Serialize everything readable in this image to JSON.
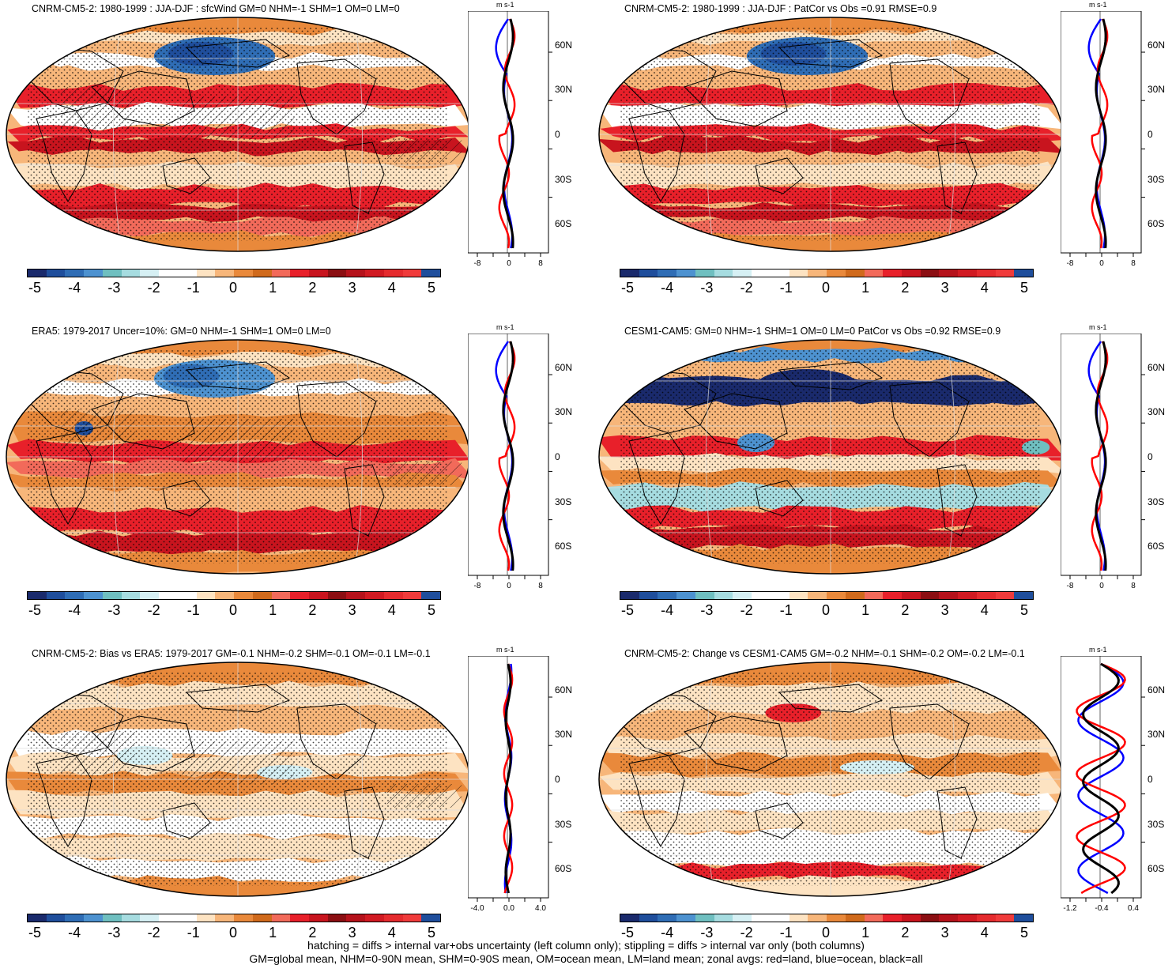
{
  "panels": [
    {
      "title": "CNRM-CM5-2: 1980-1999 : JJA-DJF : sfcWind GM=0 NHM=-1 SHM=1 OM=0 LM=0",
      "col": 0,
      "row": 0,
      "hatch": true,
      "variant": "model",
      "xticks": [
        "-8",
        "0",
        "8"
      ]
    },
    {
      "title": "CNRM-CM5-2: 1980-1999 : JJA-DJF : PatCor vs Obs =0.91 RMSE=0.9",
      "col": 1,
      "row": 0,
      "hatch": false,
      "variant": "model",
      "xticks": [
        "-8",
        "0",
        "8"
      ]
    },
    {
      "title": "ERA5: 1979-2017 Uncer=10%: GM=0 NHM=-1 SHM=1 OM=0 LM=0",
      "col": 0,
      "row": 1,
      "hatch": true,
      "variant": "obs",
      "xticks": [
        "-8",
        "0",
        "8"
      ]
    },
    {
      "title": "CESM1-CAM5: GM=0 NHM=-1 SHM=1 OM=0 LM=0 PatCor vs Obs =0.92 RMSE=0.9",
      "col": 1,
      "row": 1,
      "hatch": false,
      "variant": "cesm",
      "xticks": [
        "-8",
        "0",
        "8"
      ]
    },
    {
      "title": "CNRM-CM5-2: Bias vs ERA5: 1979-2017 GM=-0.1 NHM=-0.2 SHM=-0.1 OM=-0.1 LM=-0.1",
      "col": 0,
      "row": 2,
      "hatch": true,
      "variant": "bias",
      "xticks": [
        "-4.0",
        "0.0",
        "4.0"
      ]
    },
    {
      "title": "CNRM-CM5-2: Change vs CESM1-CAM5 GM=-0.2 NHM=-0.1 SHM=-0.2 OM=-0.2 LM=-0.1",
      "col": 1,
      "row": 2,
      "hatch": false,
      "variant": "change",
      "xticks": [
        "-1.2",
        "-0.4",
        "0.4"
      ]
    }
  ],
  "colorbar": {
    "colors": [
      "#1a2a6c",
      "#1f4e9c",
      "#2f6db5",
      "#4d92d0",
      "#6fbfc0",
      "#a6dce0",
      "#d6f0f4",
      "#ffffff",
      "#ffffff",
      "#fde3c2",
      "#f7b67a",
      "#e9893b",
      "#d06a1c",
      "#f26a5a",
      "#e8202a",
      "#c8141e",
      "#8b0e12",
      "#b5121b",
      "#d11a22",
      "#e52b2e",
      "#f03b3b",
      "#1f4e9c"
    ],
    "labels": [
      "-5",
      "-4",
      "-3",
      "-2",
      "-1",
      "0",
      "1",
      "2",
      "3",
      "4",
      "5"
    ]
  },
  "zonal": {
    "unit": "m s-1",
    "lat_labels": [
      "60N",
      "30N",
      "0",
      "30S",
      "60S"
    ],
    "line_colors": {
      "land": "#ff0000",
      "ocean": "#0000ff",
      "all": "#000000"
    }
  },
  "footer": {
    "line1": "hatching = diffs > internal var+obs uncertainty (left column only); stippling = diffs > internal var only (both columns)",
    "line2": "GM=global mean, NHM=0-90N mean, SHM=0-90S mean, OM=ocean mean, LM=land mean; zonal avgs: red=land, blue=ocean, black=all"
  }
}
